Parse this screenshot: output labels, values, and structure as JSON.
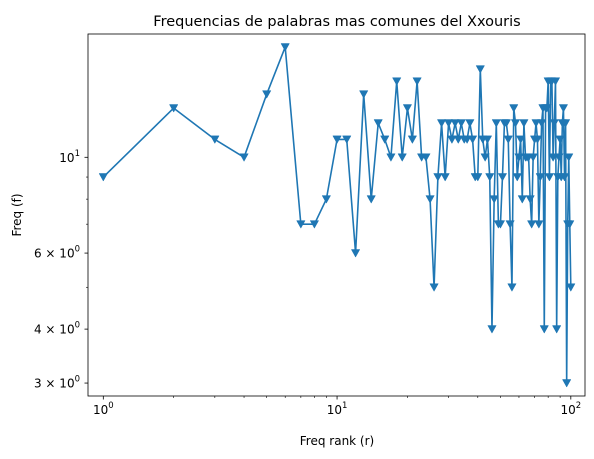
{
  "chart_data": {
    "type": "line",
    "title": "Frequencias de palabras mas comunes del Xxouris",
    "xlabel": "Freq rank (r)",
    "ylabel": "Freq (f)",
    "xscale": "log",
    "yscale": "log",
    "xlim": [
      0.86,
      115
    ],
    "ylim": [
      2.8,
      19.3
    ],
    "grid": false,
    "marker": "triangle-down",
    "color": "#1f77b4",
    "x_ticks": [
      {
        "value": 1,
        "label": "10",
        "exp": "0"
      },
      {
        "value": 10,
        "label": "10",
        "exp": "1"
      },
      {
        "value": 100,
        "label": "10",
        "exp": "2"
      }
    ],
    "y_ticks": [
      {
        "value": 3,
        "label": "3 × 10",
        "exp": "0"
      },
      {
        "value": 4,
        "label": "4 × 10",
        "exp": "0"
      },
      {
        "value": 6,
        "label": "6 × 10",
        "exp": "0"
      },
      {
        "value": 10,
        "label": "10",
        "exp": "1"
      }
    ],
    "y_minor_ticks": [
      5,
      7,
      8,
      9
    ],
    "series": [
      {
        "x": [
          1,
          2,
          3,
          4,
          5,
          6,
          7,
          8,
          9,
          10,
          11,
          12,
          13,
          14,
          15,
          16,
          17,
          18,
          19,
          20,
          21,
          22,
          23,
          24,
          25,
          26,
          27,
          28,
          29,
          30,
          31,
          32,
          33,
          34,
          35,
          36,
          37,
          38,
          39,
          40,
          41,
          42,
          43,
          44,
          45,
          46,
          47,
          48,
          49,
          50,
          51,
          52,
          53,
          54,
          55,
          56,
          57,
          58,
          59,
          60,
          61,
          62,
          63,
          64,
          65,
          66,
          67,
          68,
          69,
          70,
          71,
          72,
          73,
          74,
          75,
          76,
          77,
          78,
          79,
          80,
          81,
          82,
          83,
          84,
          85,
          86,
          87,
          88,
          89,
          90,
          91,
          92,
          93,
          94,
          95,
          96,
          97,
          98,
          99,
          100
        ],
        "y": [
          9,
          13,
          11,
          10,
          14,
          18,
          7,
          7,
          8,
          11,
          11,
          6,
          14,
          8,
          12,
          11,
          10,
          15,
          10,
          13,
          11,
          15,
          10,
          10,
          8,
          5,
          9,
          12,
          9,
          12,
          11,
          12,
          11,
          12,
          11,
          11,
          12,
          11,
          9,
          9,
          16,
          11,
          10,
          11,
          9,
          4,
          8,
          12,
          7,
          7,
          9,
          12,
          12,
          11,
          7,
          5,
          13,
          12,
          9,
          10,
          11,
          8,
          12,
          10,
          10,
          10,
          8,
          7,
          10,
          11,
          12,
          11,
          7,
          9,
          12,
          13,
          4,
          13,
          13,
          15,
          9,
          15,
          15,
          10,
          12,
          15,
          4,
          9,
          10,
          11,
          9,
          12,
          13,
          9,
          12,
          3,
          7,
          10,
          7,
          5
        ]
      }
    ]
  }
}
